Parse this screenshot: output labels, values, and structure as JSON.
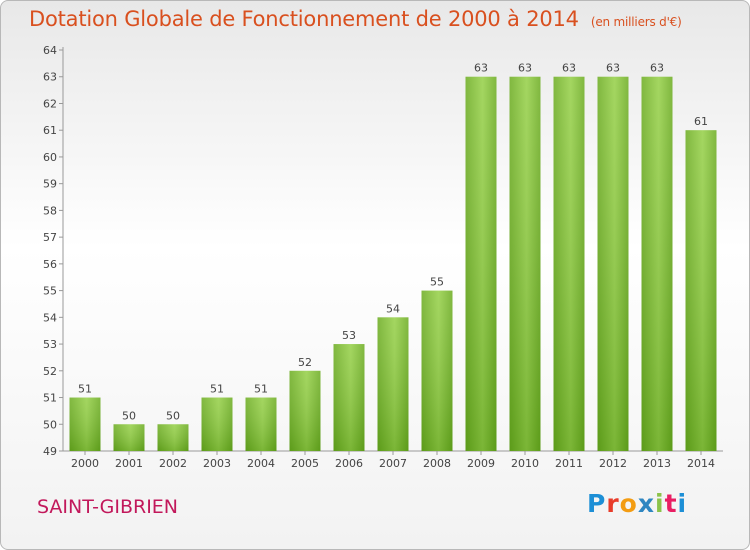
{
  "title": "Dotation Globale de Fonctionnement de 2000 à 2014",
  "subtitle": "(en milliers d'€)",
  "commune": "SAINT-GIBRIEN",
  "logo": {
    "letters": [
      "P",
      "r",
      "o",
      "x",
      "i",
      "t",
      "i"
    ]
  },
  "chart_data": {
    "type": "bar",
    "categories": [
      "2000",
      "2001",
      "2002",
      "2003",
      "2004",
      "2005",
      "2006",
      "2007",
      "2008",
      "2009",
      "2010",
      "2011",
      "2012",
      "2013",
      "2014"
    ],
    "values": [
      51,
      50,
      50,
      51,
      51,
      52,
      53,
      54,
      55,
      63,
      63,
      63,
      63,
      63,
      61
    ],
    "ylim": [
      49,
      64
    ],
    "yticks": [
      49,
      50,
      51,
      52,
      53,
      54,
      55,
      56,
      57,
      58,
      59,
      60,
      61,
      62,
      63,
      64
    ],
    "grid": false,
    "bar_color": "#7cbf2a"
  }
}
